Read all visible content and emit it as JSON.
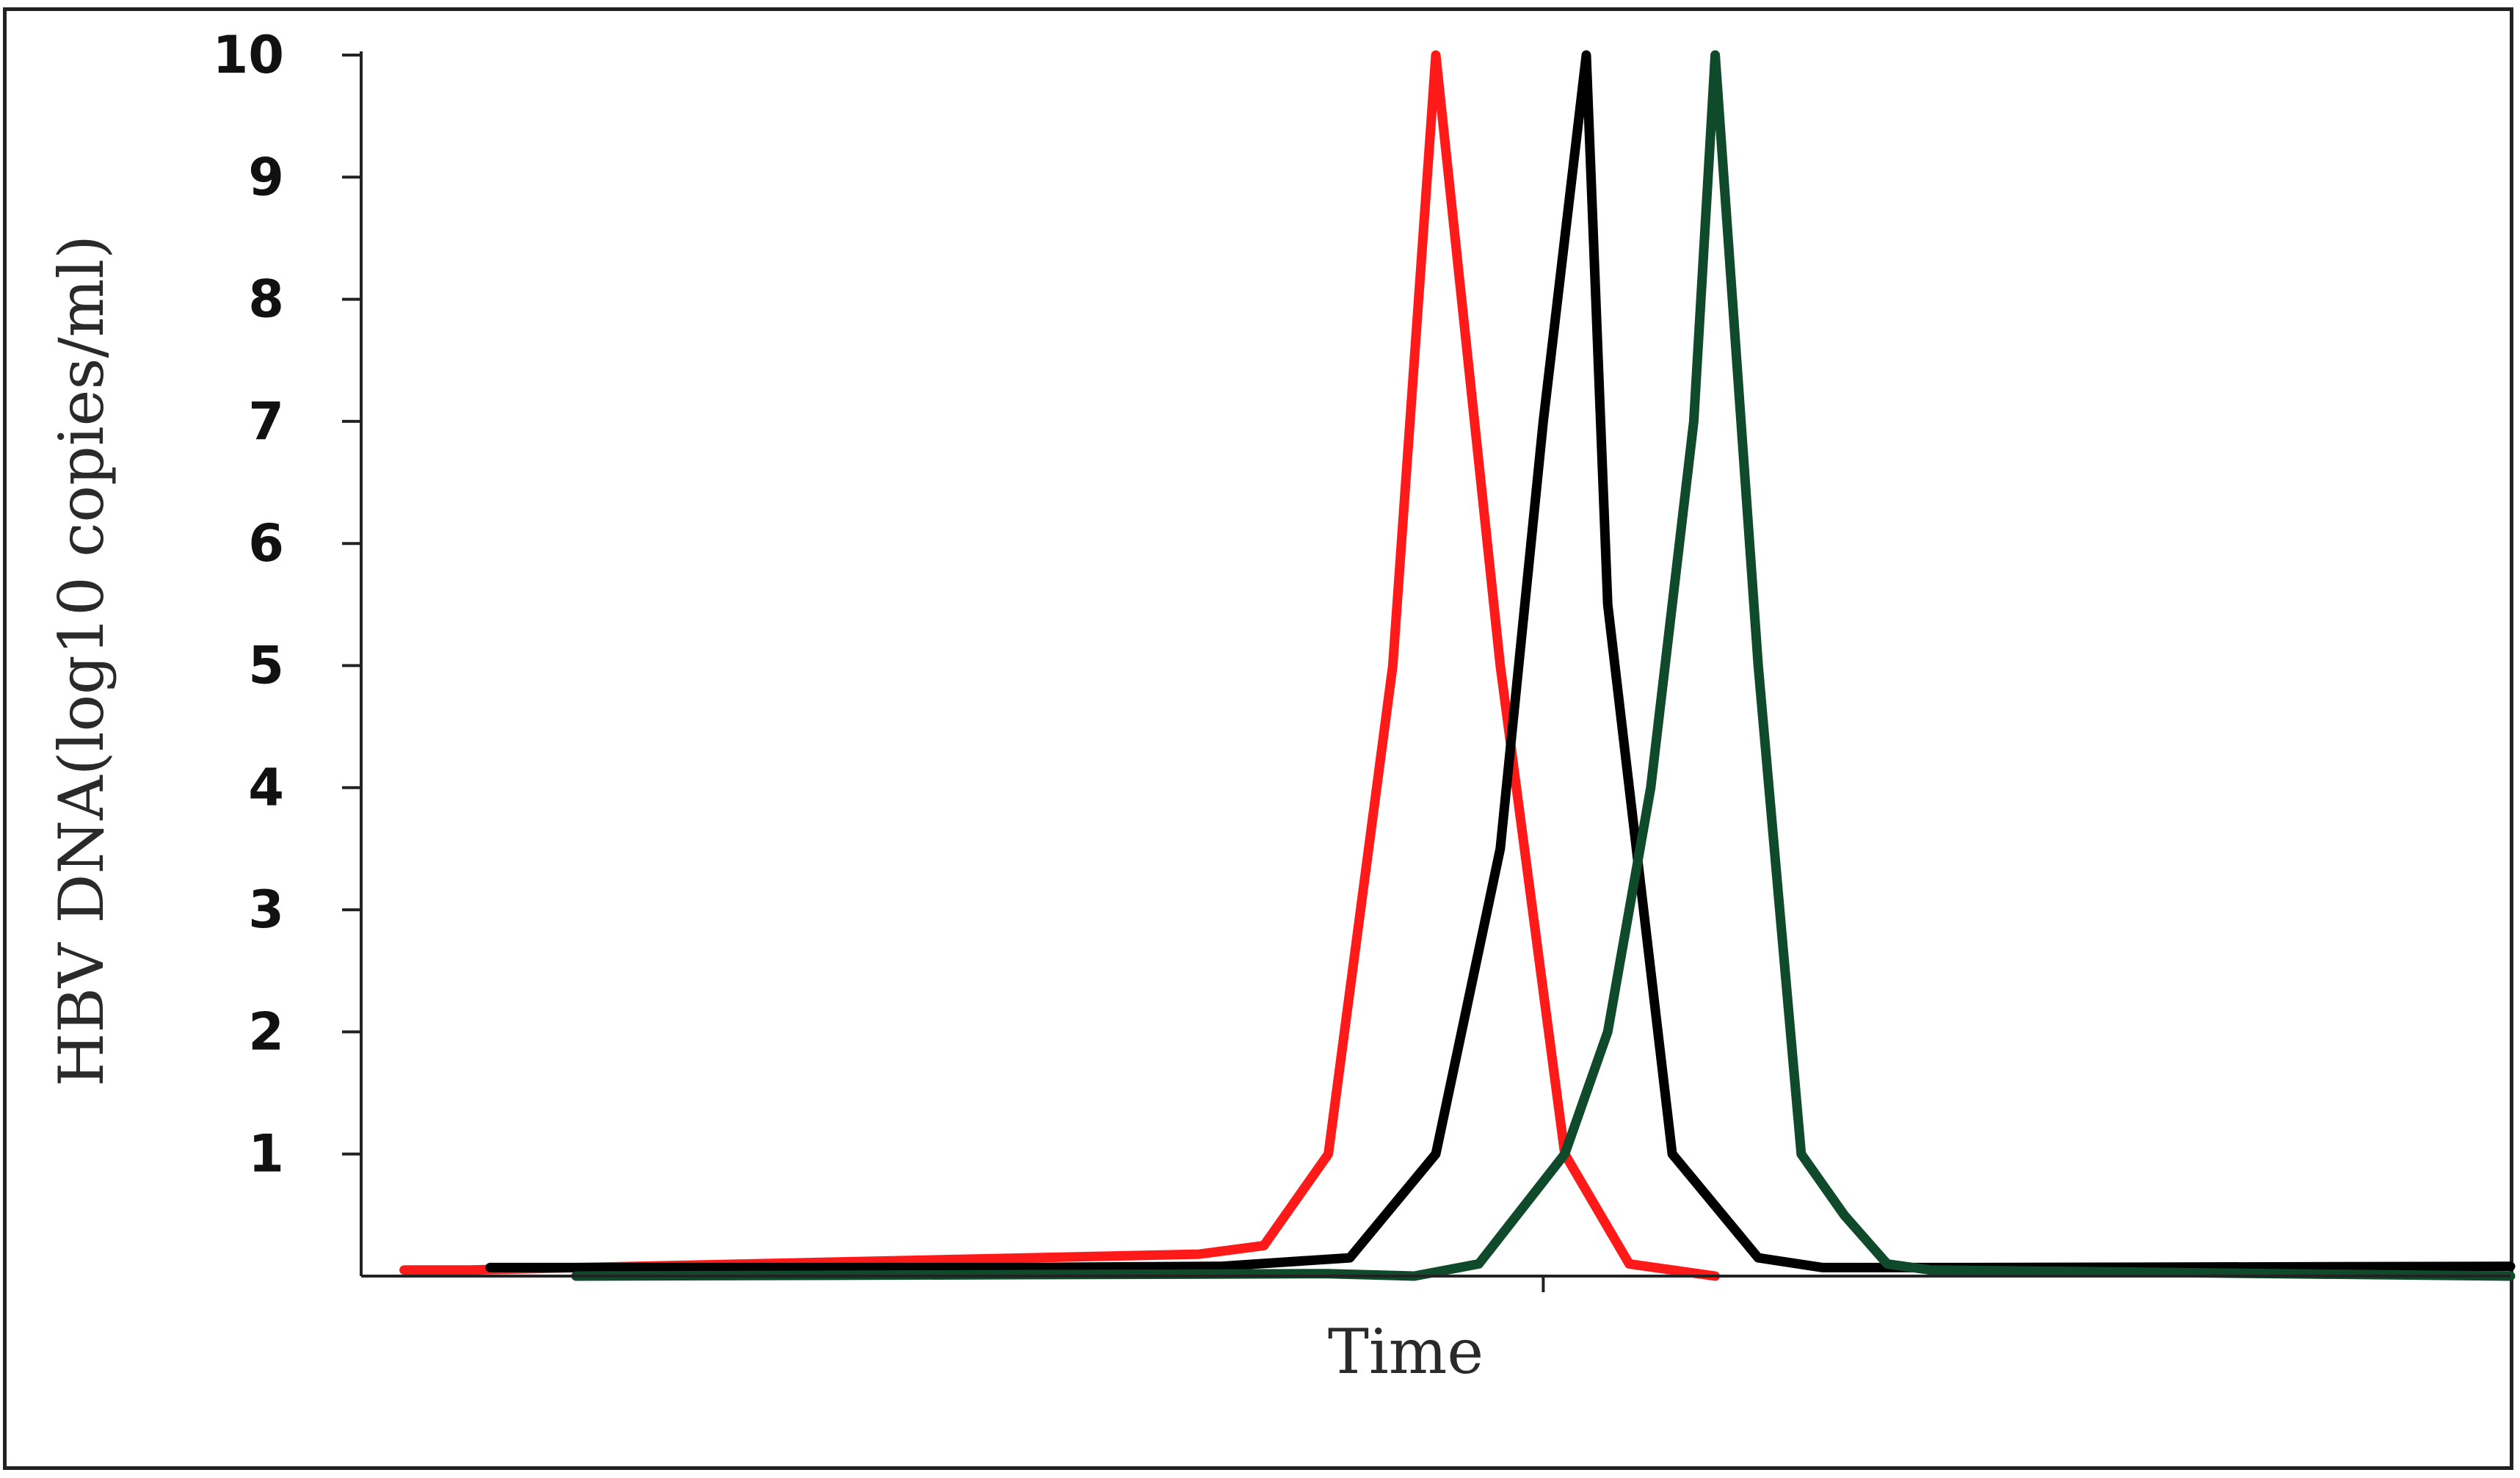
{
  "chart_data": {
    "type": "line",
    "title": "",
    "xlabel": "Time",
    "ylabel": "HBV DNA(log10 copies/ml)",
    "xlim": [
      0,
      100
    ],
    "ylim": [
      0,
      10
    ],
    "yticks": [
      1,
      2,
      3,
      4,
      5,
      6,
      7,
      8,
      9,
      10
    ],
    "xtick_marks": [
      55
    ],
    "grid": false,
    "legend": "none",
    "series": [
      {
        "color": "#ff1a1a",
        "x": [
          2,
          5,
          39,
          42,
          45,
          48,
          50,
          53,
          56,
          59,
          63
        ],
        "y": [
          0.05,
          0.05,
          0.18,
          0.25,
          1.0,
          5.0,
          10.0,
          5.0,
          1.0,
          0.1,
          0.0
        ]
      },
      {
        "color": "#000000",
        "x": [
          6,
          20,
          30,
          40,
          46,
          50,
          53,
          55,
          57,
          58,
          61,
          65,
          68,
          75,
          100
        ],
        "y": [
          0.07,
          0.07,
          0.07,
          0.08,
          0.15,
          1.0,
          3.5,
          7.0,
          10.0,
          5.5,
          1.0,
          0.15,
          0.07,
          0.07,
          0.08
        ]
      },
      {
        "color": "#0f4a2a",
        "x": [
          10,
          45,
          49,
          52,
          56,
          58,
          60,
          62,
          63,
          65,
          67,
          69,
          71,
          73,
          100
        ],
        "y": [
          0.0,
          0.02,
          0.0,
          0.1,
          1.0,
          2.0,
          4.0,
          7.0,
          10.0,
          5.0,
          1.0,
          0.5,
          0.1,
          0.05,
          0.0
        ]
      }
    ]
  }
}
